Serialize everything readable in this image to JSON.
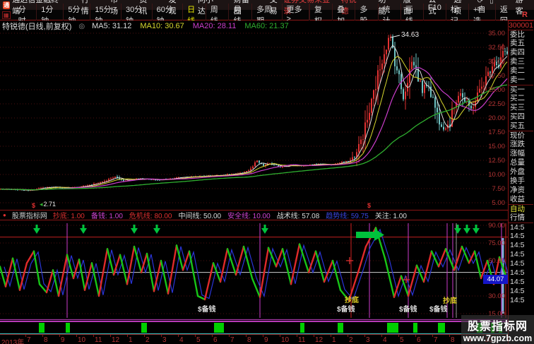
{
  "app": {
    "logo": "通",
    "title": "通达信金融终端",
    "menus": [
      "行情",
      "市场",
      "资讯",
      "发现",
      "问小达",
      "财富圈",
      "交易"
    ],
    "login_status": "证券交易未登录",
    "stock_name": "特锐德",
    "right_menus": [
      "功能",
      "版面",
      "公式",
      "选项"
    ],
    "icons": [
      {
        "name": "refresh-icon",
        "glyph": "⟳"
      },
      {
        "name": "phone-icon",
        "glyph": "▯"
      },
      {
        "name": "mail-icon",
        "glyph": "✉"
      }
    ],
    "user": "游客"
  },
  "toolbar": {
    "grid_icon": "▦",
    "periods": [
      "分时",
      "1分钟",
      "5分钟",
      "15分钟",
      "30分钟",
      "60分钟",
      "日线",
      "周线",
      "月线",
      "多周期",
      "更多>"
    ],
    "active_period": "日线",
    "tools": [
      "复权",
      "叠加",
      "多股",
      "统计",
      "画线",
      "F10",
      "标记",
      "+自选",
      "返回"
    ],
    "r_badge": "R"
  },
  "chart_header": {
    "title": "特锐德(日线,前复权)",
    "toggle_icon": "◎",
    "mas": [
      {
        "label": "MA5: 31.12",
        "color": "#dcdcdc"
      },
      {
        "label": "MA10: 30.67",
        "color": "#d8d82e"
      },
      {
        "label": "MA20: 28.11",
        "color": "#cc3ecc"
      },
      {
        "label": "MA60: 21.37",
        "color": "#2fae2f"
      }
    ]
  },
  "price_chart": {
    "y_ticks": [
      "35.00",
      "32.50",
      "30.00",
      "27.50",
      "25.00",
      "22.50",
      "20.00",
      "17.50",
      "15.00",
      "12.50",
      "10.00",
      "7.50",
      "5.00"
    ],
    "peak_label": "34.63",
    "corner_label": "2.71"
  },
  "indicator": {
    "dot": "●",
    "source": "股票指标网",
    "legend": [
      {
        "label": "抄底",
        "value": "1.00",
        "color": "#e03030"
      },
      {
        "label": "备钱",
        "value": "1.00",
        "color": "#d044d0"
      },
      {
        "label": "危机线",
        "value": "80.00",
        "color": "#e03030"
      },
      {
        "label": "中间线",
        "value": "50.00",
        "color": "#dddddd"
      },
      {
        "label": "安全线",
        "value": "10.00",
        "color": "#d044d0"
      },
      {
        "label": "战术线",
        "value": "57.08",
        "color": "#dddddd"
      },
      {
        "label": "趋势线",
        "value": "59.75",
        "color": "#3a45e0"
      },
      {
        "label": "关注",
        "value": "1.00",
        "color": "#dddddd"
      }
    ],
    "y_ticks": [
      "90.00",
      "75.00",
      "60.00",
      "30.00",
      "15.00"
    ],
    "current_value": "44.07"
  },
  "x_axis": {
    "year": "2013年",
    "months": [
      "7",
      "8",
      "9",
      "10",
      "11",
      "12",
      "1",
      "2",
      "3",
      "4",
      "5",
      "6",
      "7",
      "8",
      "9",
      "10",
      "11",
      "12",
      "1",
      "2",
      "3",
      "4",
      "5",
      "6",
      "7",
      "8",
      "9",
      "10"
    ]
  },
  "sidebar": {
    "code": "300001",
    "rows": [
      "委比",
      "卖五",
      "卖四",
      "卖三",
      "卖二",
      "卖一",
      "买一",
      "买二",
      "买三",
      "买四",
      "买五",
      "现价",
      "涨跌",
      "涨幅",
      "总量",
      "外盘",
      "换手",
      "净资",
      "收益"
    ],
    "auto": "自动",
    "quote": "行情",
    "times": [
      "14:5",
      "14:5",
      "14:5",
      "14:5",
      "14:5",
      "14:5",
      "14:5",
      "14:5",
      "14:5"
    ]
  },
  "watermark": {
    "line1": "股票指标网",
    "line2": "www.7gpzb.com"
  },
  "colors": {
    "up": "#e23232",
    "down": "#6fc3c3",
    "ma5": "#dcdcdc",
    "ma10": "#d8d82e",
    "ma20": "#cc3ecc",
    "ma60": "#2fae2f",
    "grid": "#4d1111",
    "axis_text": "#b23434",
    "osc_up": "#e02a2a",
    "osc_down": "#17c517",
    "osc_blue": "#2a35d8",
    "level_crisis": "#c02020",
    "level_mid": "#cfcfcf",
    "level_safe": "#c040c0",
    "signal_green": "#00c23c",
    "strip_bar": "#00d000"
  },
  "chart_data": {
    "type": "candlestick+oscillator",
    "price": {
      "ylim": [
        5,
        35
      ],
      "pivots": [
        [
          0,
          7.4
        ],
        [
          40,
          7.2
        ],
        [
          70,
          7.8
        ],
        [
          100,
          7.6
        ],
        [
          130,
          8.2
        ],
        [
          150,
          8.9
        ],
        [
          163,
          9.6
        ],
        [
          175,
          8.9
        ],
        [
          195,
          9.3
        ],
        [
          225,
          9.0
        ],
        [
          255,
          9.5
        ],
        [
          285,
          9.7
        ],
        [
          315,
          9.9
        ],
        [
          340,
          10.2
        ],
        [
          355,
          10.9
        ],
        [
          364,
          12.4
        ],
        [
          372,
          11.5
        ],
        [
          382,
          12.0
        ],
        [
          395,
          11.3
        ],
        [
          412,
          11.7
        ],
        [
          430,
          11.5
        ],
        [
          450,
          11.9
        ],
        [
          468,
          11.7
        ],
        [
          482,
          12.1
        ],
        [
          495,
          12.4
        ],
        [
          505,
          13.8
        ],
        [
          515,
          17.5
        ],
        [
          524,
          21.5
        ],
        [
          533,
          26.5
        ],
        [
          543,
          31.5
        ],
        [
          552,
          34.6
        ],
        [
          558,
          31.0
        ],
        [
          564,
          27.5
        ],
        [
          571,
          23.5
        ],
        [
          577,
          27.0
        ],
        [
          584,
          30.3
        ],
        [
          590,
          28.0
        ],
        [
          598,
          24.8
        ],
        [
          606,
          26.3
        ],
        [
          614,
          22.8
        ],
        [
          621,
          19.8
        ],
        [
          629,
          18.2
        ],
        [
          637,
          19.2
        ],
        [
          644,
          22.8
        ],
        [
          651,
          24.8
        ],
        [
          659,
          22.6
        ],
        [
          667,
          21.6
        ],
        [
          675,
          23.8
        ],
        [
          683,
          25.8
        ],
        [
          691,
          27.8
        ],
        [
          699,
          30.2
        ],
        [
          706,
          29.2
        ],
        [
          712,
          31.8
        ],
        [
          719,
          31.2
        ]
      ],
      "dollar_marks": [
        [
          45,
          249
        ],
        [
          520,
          249
        ]
      ]
    },
    "oscillator": {
      "levels": {
        "crisis": 80,
        "middle": 50,
        "safe": 10
      },
      "grid_values": [
        15,
        30,
        45,
        60,
        75,
        90
      ],
      "current": 44.07,
      "pivots": [
        [
          0,
          55
        ],
        [
          8,
          38
        ],
        [
          18,
          62
        ],
        [
          28,
          35
        ],
        [
          38,
          58
        ],
        [
          48,
          68
        ],
        [
          56,
          40
        ],
        [
          66,
          33
        ],
        [
          75,
          52
        ],
        [
          83,
          30
        ],
        [
          95,
          65
        ],
        [
          104,
          45
        ],
        [
          112,
          61
        ],
        [
          120,
          35
        ],
        [
          130,
          58
        ],
        [
          140,
          30
        ],
        [
          152,
          70
        ],
        [
          161,
          48
        ],
        [
          170,
          65
        ],
        [
          180,
          40
        ],
        [
          190,
          72
        ],
        [
          200,
          50
        ],
        [
          208,
          66
        ],
        [
          218,
          34
        ],
        [
          228,
          60
        ],
        [
          238,
          32
        ],
        [
          250,
          73
        ],
        [
          259,
          52
        ],
        [
          268,
          68
        ],
        [
          280,
          30
        ],
        [
          290,
          27
        ],
        [
          302,
          58
        ],
        [
          312,
          42
        ],
        [
          322,
          70
        ],
        [
          334,
          48
        ],
        [
          345,
          72
        ],
        [
          357,
          45
        ],
        [
          368,
          29
        ],
        [
          380,
          71
        ],
        [
          391,
          55
        ],
        [
          400,
          70
        ],
        [
          412,
          40
        ],
        [
          424,
          74
        ],
        [
          437,
          50
        ],
        [
          447,
          68
        ],
        [
          459,
          42
        ],
        [
          471,
          60
        ],
        [
          482,
          35
        ],
        [
          494,
          26
        ],
        [
          508,
          52
        ],
        [
          518,
          72
        ],
        [
          532,
          88
        ],
        [
          545,
          62
        ],
        [
          558,
          29
        ],
        [
          568,
          47
        ],
        [
          578,
          30
        ],
        [
          590,
          56
        ],
        [
          600,
          42
        ],
        [
          611,
          68
        ],
        [
          621,
          55
        ],
        [
          631,
          70
        ],
        [
          643,
          52
        ],
        [
          654,
          72
        ],
        [
          664,
          58
        ],
        [
          672,
          68
        ],
        [
          681,
          45
        ],
        [
          690,
          60
        ],
        [
          699,
          40
        ],
        [
          707,
          63
        ],
        [
          713,
          52
        ],
        [
          718,
          44
        ]
      ],
      "arrows_x": [
        52,
        118,
        190,
        222,
        375,
        648,
        661,
        674
      ],
      "block_arrow_x": 504,
      "vlines": [
        {
          "x": 95,
          "c": "#cc3ccc"
        },
        {
          "x": 368,
          "c": "#cc3ccc"
        },
        {
          "x": 497,
          "c": "#d02020"
        },
        {
          "x": 523,
          "c": "#cc3ccc"
        },
        {
          "x": 578,
          "c": "#cc3ccc"
        },
        {
          "x": 633,
          "c": "#cc3ccc"
        },
        {
          "x": 641,
          "c": "#cc3ccc"
        },
        {
          "x": 646,
          "c": "#9a9a9a"
        },
        {
          "x": 712,
          "c": "#7fb0d8",
          "w": 3,
          "y1": 25,
          "y2": 132
        },
        {
          "x": 710,
          "c": "#cc3ccc"
        },
        {
          "x": 716,
          "c": "#d02020"
        }
      ],
      "crosses": [
        [
          495,
          57
        ],
        [
          575,
          84
        ]
      ],
      "labels": [
        {
          "text": "抄底",
          "x": 488,
          "y": 116,
          "color": "#ddcc22"
        },
        {
          "text": "$备钱",
          "x": 280,
          "y": 129,
          "color": "#dddddd"
        },
        {
          "text": "$备钱",
          "x": 477,
          "y": 129,
          "color": "#dddddd"
        },
        {
          "text": "$备钱",
          "x": 565,
          "y": 129,
          "color": "#dddddd"
        },
        {
          "text": "$备钱",
          "x": 608,
          "y": 129,
          "color": "#dddddd"
        },
        {
          "text": "抄底",
          "x": 627,
          "y": 117,
          "color": "#ddcc22"
        }
      ]
    },
    "strip": {
      "bars": [
        [
          55,
          8
        ],
        [
          93,
          6
        ],
        [
          200,
          8
        ],
        [
          303,
          14
        ],
        [
          425,
          6
        ],
        [
          478,
          8
        ],
        [
          548,
          16
        ],
        [
          585,
          6
        ],
        [
          620,
          10
        ],
        [
          675,
          8
        ],
        [
          695,
          5
        ],
        [
          706,
          5
        ]
      ]
    },
    "month_x_start": 36,
    "month_x_step": 24
  }
}
